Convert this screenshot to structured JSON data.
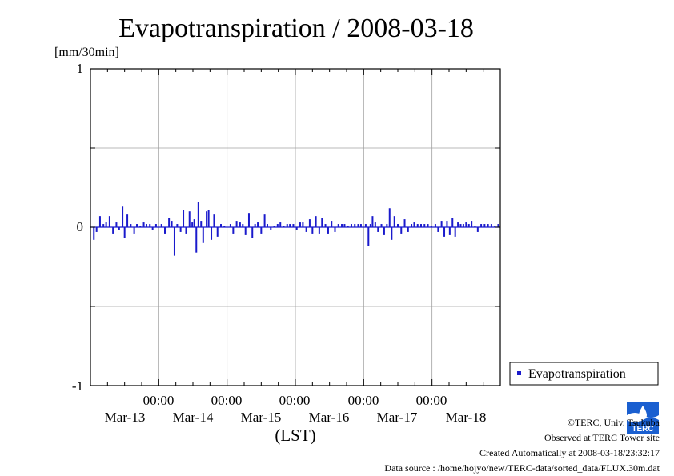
{
  "chart_data": {
    "type": "bar",
    "title": "Evapotranspiration / 2008-03-18",
    "unit_label": "[mm/30min]",
    "xlabel": "(LST)",
    "ylim": [
      -1,
      1
    ],
    "y_ticks": [
      "1",
      "0",
      "-1"
    ],
    "x_range_days": [
      0,
      6
    ],
    "x_tick_times": [
      "00:00",
      "00:00",
      "00:00",
      "00:00",
      "00:00"
    ],
    "x_day_labels": [
      "Mar-13",
      "Mar-14",
      "Mar-15",
      "Mar-16",
      "Mar-17",
      "Mar-18"
    ],
    "grid": true,
    "legend_position": "right",
    "series": [
      {
        "name": "Evapotranspiration",
        "color": "#1a1acc",
        "points": [
          [
            0.05,
            -0.08
          ],
          [
            0.09,
            -0.03
          ],
          [
            0.14,
            0.07
          ],
          [
            0.19,
            0.02
          ],
          [
            0.23,
            0.03
          ],
          [
            0.28,
            0.07
          ],
          [
            0.33,
            -0.04
          ],
          [
            0.38,
            0.03
          ],
          [
            0.42,
            -0.02
          ],
          [
            0.47,
            0.13
          ],
          [
            0.5,
            -0.07
          ],
          [
            0.54,
            0.08
          ],
          [
            0.59,
            0.02
          ],
          [
            0.64,
            -0.04
          ],
          [
            0.68,
            0.02
          ],
          [
            0.73,
            0.01
          ],
          [
            0.78,
            0.03
          ],
          [
            0.82,
            0.02
          ],
          [
            0.87,
            0.02
          ],
          [
            0.91,
            -0.02
          ],
          [
            0.96,
            0.02
          ],
          [
            1.04,
            0.02
          ],
          [
            1.09,
            -0.04
          ],
          [
            1.15,
            0.06
          ],
          [
            1.19,
            0.04
          ],
          [
            1.23,
            -0.18
          ],
          [
            1.27,
            0.02
          ],
          [
            1.32,
            -0.03
          ],
          [
            1.36,
            0.11
          ],
          [
            1.4,
            -0.04
          ],
          [
            1.45,
            0.1
          ],
          [
            1.49,
            0.03
          ],
          [
            1.52,
            0.05
          ],
          [
            1.55,
            -0.16
          ],
          [
            1.58,
            0.16
          ],
          [
            1.62,
            0.04
          ],
          [
            1.65,
            -0.1
          ],
          [
            1.7,
            0.1
          ],
          [
            1.73,
            0.11
          ],
          [
            1.77,
            -0.08
          ],
          [
            1.81,
            0.08
          ],
          [
            1.86,
            -0.06
          ],
          [
            1.91,
            0.02
          ],
          [
            1.96,
            0.01
          ],
          [
            2.05,
            0.02
          ],
          [
            2.09,
            -0.04
          ],
          [
            2.14,
            0.04
          ],
          [
            2.19,
            0.03
          ],
          [
            2.23,
            0.02
          ],
          [
            2.27,
            -0.05
          ],
          [
            2.32,
            0.09
          ],
          [
            2.37,
            -0.07
          ],
          [
            2.41,
            0.02
          ],
          [
            2.45,
            0.03
          ],
          [
            2.5,
            -0.04
          ],
          [
            2.55,
            0.08
          ],
          [
            2.59,
            0.02
          ],
          [
            2.64,
            -0.02
          ],
          [
            2.69,
            0.01
          ],
          [
            2.74,
            0.02
          ],
          [
            2.78,
            0.03
          ],
          [
            2.83,
            0.01
          ],
          [
            2.88,
            0.02
          ],
          [
            2.92,
            0.02
          ],
          [
            2.97,
            0.02
          ],
          [
            3.02,
            -0.02
          ],
          [
            3.07,
            0.03
          ],
          [
            3.11,
            0.03
          ],
          [
            3.16,
            -0.03
          ],
          [
            3.21,
            0.05
          ],
          [
            3.25,
            -0.04
          ],
          [
            3.3,
            0.07
          ],
          [
            3.35,
            -0.04
          ],
          [
            3.39,
            0.06
          ],
          [
            3.44,
            0.02
          ],
          [
            3.48,
            -0.04
          ],
          [
            3.53,
            0.04
          ],
          [
            3.58,
            -0.03
          ],
          [
            3.63,
            0.02
          ],
          [
            3.68,
            0.02
          ],
          [
            3.72,
            0.02
          ],
          [
            3.77,
            0.01
          ],
          [
            3.82,
            0.02
          ],
          [
            3.87,
            0.02
          ],
          [
            3.92,
            0.02
          ],
          [
            3.96,
            0.02
          ],
          [
            4.03,
            0.02
          ],
          [
            4.07,
            -0.12
          ],
          [
            4.1,
            0.02
          ],
          [
            4.13,
            0.07
          ],
          [
            4.17,
            0.03
          ],
          [
            4.21,
            -0.03
          ],
          [
            4.26,
            0.02
          ],
          [
            4.3,
            -0.05
          ],
          [
            4.34,
            0.02
          ],
          [
            4.38,
            0.12
          ],
          [
            4.41,
            -0.08
          ],
          [
            4.45,
            0.07
          ],
          [
            4.5,
            0.02
          ],
          [
            4.55,
            -0.04
          ],
          [
            4.6,
            0.05
          ],
          [
            4.65,
            -0.03
          ],
          [
            4.7,
            0.02
          ],
          [
            4.74,
            0.03
          ],
          [
            4.79,
            0.02
          ],
          [
            4.84,
            0.02
          ],
          [
            4.89,
            0.02
          ],
          [
            4.94,
            0.02
          ],
          [
            4.99,
            0.01
          ],
          [
            5.05,
            0.02
          ],
          [
            5.09,
            -0.03
          ],
          [
            5.14,
            0.04
          ],
          [
            5.18,
            -0.06
          ],
          [
            5.22,
            0.04
          ],
          [
            5.26,
            -0.05
          ],
          [
            5.3,
            0.06
          ],
          [
            5.34,
            -0.06
          ],
          [
            5.38,
            0.03
          ],
          [
            5.42,
            0.02
          ],
          [
            5.46,
            0.02
          ],
          [
            5.5,
            0.03
          ],
          [
            5.54,
            0.02
          ],
          [
            5.58,
            0.04
          ],
          [
            5.63,
            0.01
          ],
          [
            5.67,
            -0.03
          ],
          [
            5.72,
            0.02
          ],
          [
            5.77,
            0.02
          ],
          [
            5.82,
            0.02
          ],
          [
            5.87,
            0.02
          ],
          [
            5.92,
            0.01
          ],
          [
            5.97,
            0.02
          ]
        ]
      }
    ]
  },
  "credits": {
    "copyright": "©TERC, Univ. Tsukuba",
    "observed": "Observed at TERC Tower site",
    "created": "Created Automatically at 2008-03-18/23:32:17",
    "source": "Data source : /home/hojyo/new/TERC-data/sorted_data/FLUX.30m.dat"
  },
  "logo": {
    "text": "TERC",
    "color": "#1a5fd0"
  }
}
